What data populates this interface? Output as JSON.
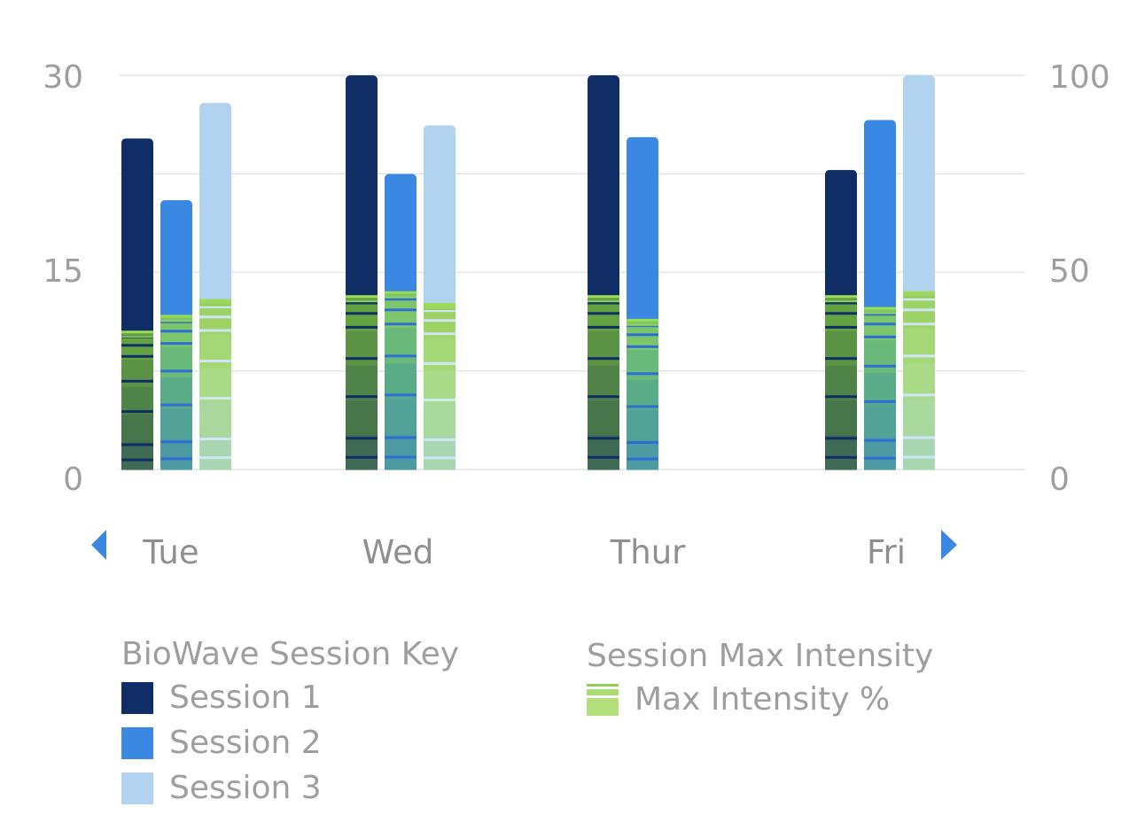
{
  "chart_data": {
    "type": "bar",
    "categories": [
      "Tue",
      "Wed",
      "Thur",
      "Fri"
    ],
    "y_left": {
      "ticks": [
        "30",
        "15",
        "0"
      ],
      "range": [
        0,
        30
      ]
    },
    "y_right": {
      "ticks": [
        "100",
        "50",
        "0"
      ],
      "range": [
        0,
        100
      ]
    },
    "series": [
      {
        "name": "Session 1",
        "color": "#112d66",
        "values": [
          25.2,
          30,
          30,
          22.8
        ],
        "max_intensity_pct": [
          35,
          44,
          44,
          44
        ]
      },
      {
        "name": "Session 2",
        "color": "#3a88e2",
        "values": [
          20.5,
          22.5,
          25.3,
          26.6
        ],
        "max_intensity_pct": [
          39,
          45,
          38,
          41
        ]
      },
      {
        "name": "Session 3",
        "color": "#b2d3f0",
        "values": [
          27.9,
          26.2,
          null,
          30
        ],
        "max_intensity_pct": [
          43,
          42,
          null,
          45
        ]
      }
    ],
    "grid": true
  },
  "legend": {
    "sessions_title": "BioWave Session Key",
    "sessions": [
      {
        "label": "Session 1",
        "color": "#112d66"
      },
      {
        "label": "Session 2",
        "color": "#3a88e2"
      },
      {
        "label": "Session 3",
        "color": "#b2d3f0"
      }
    ],
    "intensity_title": "Session Max Intensity",
    "intensity_label": "Max Intensity %"
  },
  "colors": {
    "grid": "#e3e3e3",
    "nav": "#3a88e2",
    "text": "#9e9e9e"
  }
}
